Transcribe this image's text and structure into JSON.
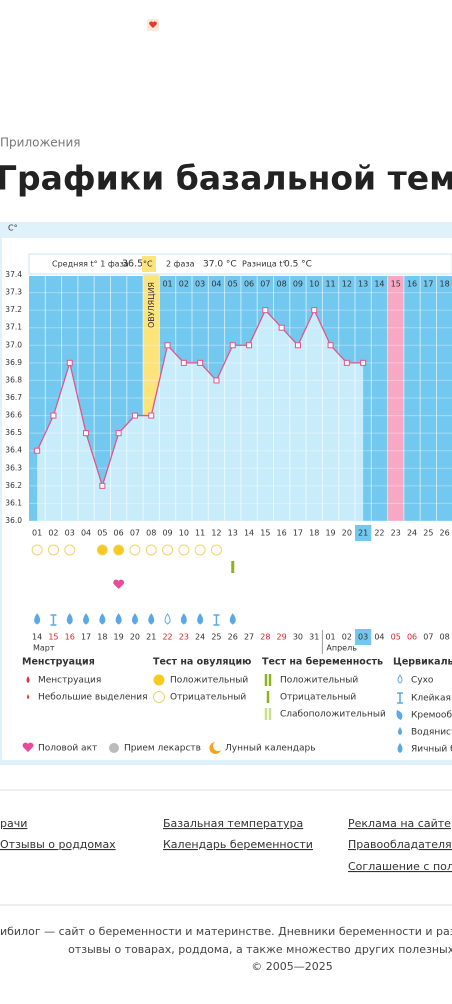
{
  "breadcrumb": "Приложения",
  "title": "Графики базальной температу",
  "stats": {
    "phase1_label": "Средняя t° 1 фаза",
    "phase1_value": "36.5",
    "unit": "°C",
    "phase2_label": "2 фаза",
    "phase2_value": "37.0 °C",
    "diff_label": "Разница t°",
    "diff_value": "0.5 °C"
  },
  "chart_data": {
    "type": "line",
    "y_label": "C°",
    "ovulation_label": "ОВУЛЯЦИЯ",
    "categories": [
      "01",
      "02",
      "03",
      "04",
      "05",
      "06",
      "07",
      "08",
      "09",
      "10",
      "11",
      "12",
      "13",
      "14",
      "15",
      "16",
      "17",
      "18",
      "19",
      "20",
      "21",
      "22",
      "23",
      "24",
      "25",
      "26"
    ],
    "values": [
      36.4,
      36.6,
      36.9,
      36.5,
      36.2,
      36.5,
      36.6,
      36.6,
      37.0,
      36.9,
      36.9,
      36.8,
      37.0,
      37.0,
      37.2,
      37.1,
      37.0,
      37.2,
      37.0,
      36.9,
      36.9,
      null,
      null,
      null,
      null,
      null
    ],
    "color": "#e2568a",
    "fill_color": "#c9ecfb",
    "background_color": "#72c8ef",
    "ylim": [
      36.0,
      37.4
    ],
    "yticks": [
      {
        "value": 36.0,
        "label": "36.0"
      },
      36.1,
      36.2,
      36.3,
      36.4,
      36.5,
      36.6,
      36.7,
      36.8,
      36.9,
      {
        "value": 37.0,
        "label": "37.0"
      },
      37.1,
      37.2,
      37.3,
      37.4
    ],
    "dpo_labels": [
      "01",
      "02",
      "03",
      "04",
      "05",
      "06",
      "07",
      "08",
      "09",
      "10",
      "11",
      "12",
      "13",
      "14",
      "15",
      "16",
      "17",
      "18"
    ],
    "dates": [
      "14",
      "15",
      "16",
      "17",
      "18",
      "19",
      "20",
      "21",
      "22",
      "23",
      "24",
      "25",
      "26",
      "27",
      "28",
      "29",
      "30",
      "31",
      "01",
      "02",
      "03",
      "04",
      "05",
      "06",
      "07",
      "08"
    ],
    "date_colors": [
      "#333",
      "#d22",
      "#d22",
      "#333",
      "#333",
      "#333",
      "#333",
      "#333",
      "#d22",
      "#d22",
      "#333",
      "#333",
      "#333",
      "#333",
      "#d22",
      "#d22",
      "#333",
      "#333",
      "#333",
      "#333",
      "#333",
      "#333",
      "#d22",
      "#d22",
      "#333",
      "#333"
    ],
    "months": [
      "Март",
      "Апрель"
    ]
  },
  "legend": {
    "menstruation": {
      "title": "Менструация",
      "items": [
        "Менструация",
        "Небольшие выделения"
      ]
    },
    "ovulation_test": {
      "title": "Тест на овуляцию",
      "items": [
        "Положительный",
        "Отрицательный"
      ]
    },
    "pregnancy_test": {
      "title": "Тест на беременность",
      "items": [
        "Положительный",
        "Отрицательный",
        "Слабоположительный"
      ]
    },
    "cervical": {
      "title": "Цервикальна",
      "items": [
        "Сухо",
        "Клейкая",
        "Кремообр",
        "Водянист",
        "Яичный бе"
      ]
    },
    "other": [
      "Половой акт",
      "Прием лекарств",
      "Лунный календарь"
    ]
  },
  "footer": {
    "links": [
      "рачи",
      "Отзывы о роддомах",
      "Базальная температура",
      "Календарь беременности",
      "Реклама на сайте",
      "Правообладателям",
      "Соглашение с пользо"
    ],
    "text": [
      "ибилог — сайт о беременности и материнстве. Дневники беременности и развития дете",
      "отзывы о товарах, роддома, а также множество других полезных разделов",
      "© 2005—2025"
    ]
  }
}
